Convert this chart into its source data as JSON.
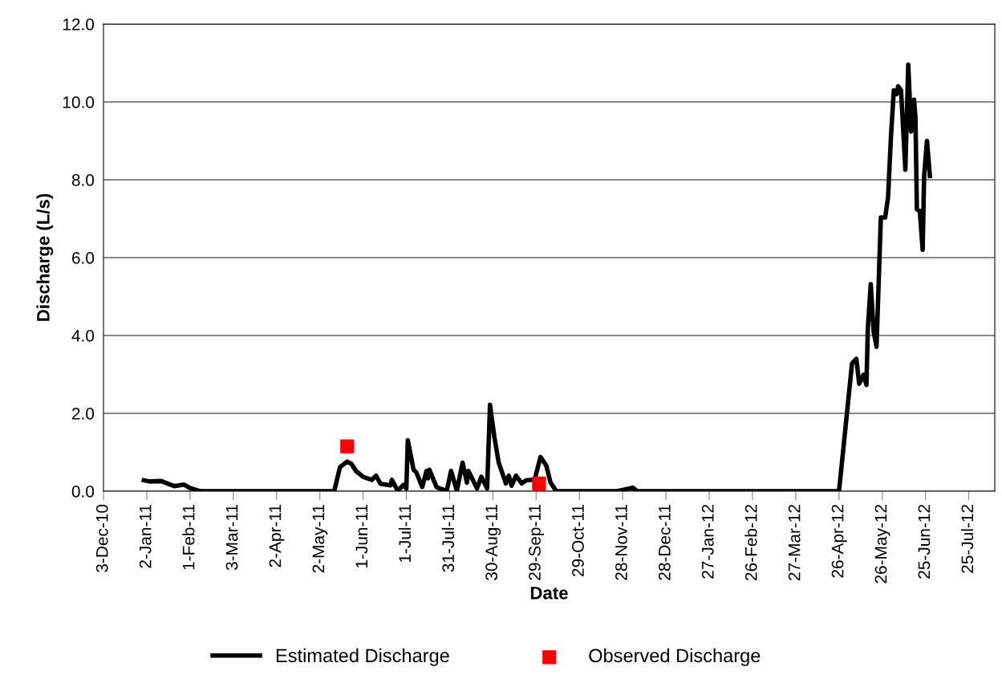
{
  "chart_data": {
    "type": "line",
    "xlabel": "Date",
    "ylabel": "Discharge (L/s)",
    "xlim": [
      "2010-12-03",
      "2012-08-12"
    ],
    "xticks": [
      {
        "value": "2010-12-03",
        "label": "3-Dec-10"
      },
      {
        "value": "2011-01-02",
        "label": "2-Jan-11"
      },
      {
        "value": "2011-02-01",
        "label": "1-Feb-11"
      },
      {
        "value": "2011-03-03",
        "label": "3-Mar-11"
      },
      {
        "value": "2011-04-02",
        "label": "2-Apr-11"
      },
      {
        "value": "2011-05-02",
        "label": "2-May-11"
      },
      {
        "value": "2011-06-01",
        "label": "1-Jun-11"
      },
      {
        "value": "2011-07-01",
        "label": "1-Jul-11"
      },
      {
        "value": "2011-07-31",
        "label": "31-Jul-11"
      },
      {
        "value": "2011-08-30",
        "label": "30-Aug-11"
      },
      {
        "value": "2011-09-29",
        "label": "29-Sep-11"
      },
      {
        "value": "2011-10-29",
        "label": "29-Oct-11"
      },
      {
        "value": "2011-11-28",
        "label": "28-Nov-11"
      },
      {
        "value": "2011-12-28",
        "label": "28-Dec-11"
      },
      {
        "value": "2012-01-27",
        "label": "27-Jan-12"
      },
      {
        "value": "2012-02-26",
        "label": "26-Feb-12"
      },
      {
        "value": "2012-03-27",
        "label": "27-Mar-12"
      },
      {
        "value": "2012-04-26",
        "label": "26-Apr-12"
      },
      {
        "value": "2012-05-26",
        "label": "26-May-12"
      },
      {
        "value": "2012-06-25",
        "label": "25-Jun-12"
      },
      {
        "value": "2012-07-25",
        "label": "25-Jul-12"
      }
    ],
    "ylim": [
      0,
      12
    ],
    "yticks": [
      {
        "value": 0,
        "label": "0.0"
      },
      {
        "value": 2,
        "label": "2.0"
      },
      {
        "value": 4,
        "label": "4.0"
      },
      {
        "value": 6,
        "label": "6.0"
      },
      {
        "value": 8,
        "label": "8.0"
      },
      {
        "value": 10,
        "label": "10.0"
      },
      {
        "value": 12,
        "label": "12.0"
      }
    ],
    "grid": "y",
    "legend": "bottom",
    "series": [
      {
        "name": "Estimated Discharge",
        "color": "#000000",
        "marker": "none",
        "line_style": "solid",
        "x": [
          "2010-12-31",
          "2011-01-04",
          "2011-01-12",
          "2011-01-21",
          "2011-01-28",
          "2011-02-01",
          "2011-02-08",
          "2011-05-12",
          "2011-05-16",
          "2011-05-21",
          "2011-05-24",
          "2011-05-27",
          "2011-06-01",
          "2011-06-07",
          "2011-06-10",
          "2011-06-13",
          "2011-06-20",
          "2011-06-21",
          "2011-06-25",
          "2011-06-29",
          "2011-07-01",
          "2011-07-02",
          "2011-07-06",
          "2011-07-08",
          "2011-07-12",
          "2011-07-15",
          "2011-07-16",
          "2011-07-17",
          "2011-07-22",
          "2011-07-29",
          "2011-08-01",
          "2011-08-05",
          "2011-08-09",
          "2011-08-12",
          "2011-08-13",
          "2011-08-19",
          "2011-08-22",
          "2011-08-26",
          "2011-08-28",
          "2011-08-31",
          "2011-09-03",
          "2011-09-08",
          "2011-09-10",
          "2011-09-12",
          "2011-09-15",
          "2011-09-19",
          "2011-09-22",
          "2011-09-28",
          "2011-10-02",
          "2011-10-06",
          "2011-10-09",
          "2011-10-13",
          "2011-11-24",
          "2011-12-05",
          "2011-12-08",
          "2012-04-26",
          "2012-05-05",
          "2012-05-08",
          "2012-05-10",
          "2012-05-13",
          "2012-05-15",
          "2012-05-16",
          "2012-05-18",
          "2012-05-20",
          "2012-05-22",
          "2012-05-25",
          "2012-05-28",
          "2012-05-30",
          "2012-06-01",
          "2012-06-03",
          "2012-06-05",
          "2012-06-06",
          "2012-06-08",
          "2012-06-11",
          "2012-06-13",
          "2012-06-15",
          "2012-06-17",
          "2012-06-18",
          "2012-06-19",
          "2012-06-21",
          "2012-06-23",
          "2012-06-24",
          "2012-06-26",
          "2012-06-28"
        ],
        "values": [
          0.28,
          0.25,
          0.26,
          0.13,
          0.17,
          0.08,
          0,
          0,
          0.62,
          0.76,
          0.7,
          0.52,
          0.37,
          0.29,
          0.4,
          0.19,
          0.15,
          0.29,
          0.01,
          0.16,
          0.07,
          1.31,
          0.55,
          0.48,
          0.11,
          0.52,
          0.33,
          0.55,
          0.1,
          0.01,
          0.52,
          0.01,
          0.73,
          0.22,
          0.52,
          0.07,
          0.37,
          0.07,
          2.22,
          1.4,
          0.74,
          0.2,
          0.4,
          0.14,
          0.4,
          0.2,
          0.28,
          0.3,
          0.88,
          0.66,
          0.22,
          0,
          0,
          0.09,
          0,
          0,
          3.28,
          3.4,
          2.76,
          2.99,
          2.73,
          4.19,
          5.32,
          4.1,
          3.71,
          7.03,
          7.03,
          7.55,
          9.1,
          10.3,
          10.2,
          10.4,
          10.3,
          8.26,
          10.96,
          9.24,
          10.06,
          9.6,
          7.24,
          7.2,
          6.2,
          8.1,
          9.0,
          8.1
        ]
      },
      {
        "name": "Observed Discharge",
        "type": "scatter",
        "color": "#ff0000",
        "marker": "square",
        "x": [
          "2011-05-21",
          "2011-10-01"
        ],
        "values": [
          1.15,
          0.2
        ]
      }
    ]
  }
}
